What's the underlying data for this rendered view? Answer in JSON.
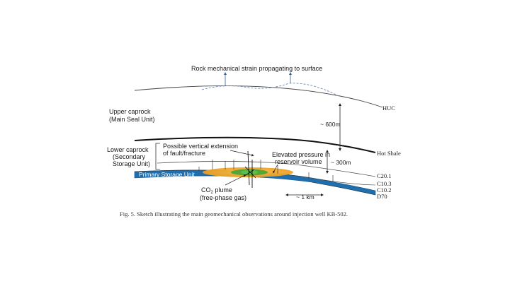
{
  "labels": {
    "strain": "Rock mechanical strain propagating to surface",
    "upper_caprock_1": "Upper caprock",
    "upper_caprock_2": "(Main Seal Unit)",
    "lower_caprock_1": "Lower caprock",
    "lower_caprock_2": "(Secondary",
    "lower_caprock_3": "Storage Unit)",
    "fault_1": "Possible vertical extension",
    "fault_2": "of fault/fracture",
    "pressure_1": "Elevated pressure in",
    "pressure_2": "reservoir volume",
    "primary_storage": "Primary Storage Unit",
    "plume_1_prefix": "CO",
    "plume_1_sub": "2",
    "plume_1_suffix": " plume",
    "plume_2": "(free-phase gas)",
    "dist_600": "~ 600m",
    "dist_300": "~ 300m",
    "dist_1km": "~ 1 km"
  },
  "horizons": {
    "huc": "HUC",
    "hot_shale": "Hot Shale",
    "c20_1": "C20.1",
    "c10_3": "C10.3",
    "c10_2": "C10.2",
    "d70": "D70"
  },
  "caption": "Fig. 5. Sketch illustrating the main geomechanical observations around injection well KB-502.",
  "colors": {
    "primary_storage_blue": "#1f6fae",
    "pressure_orange": "#f0a828",
    "plume_green": "#3aa335",
    "strain_dashed": "#6e8fb8"
  }
}
